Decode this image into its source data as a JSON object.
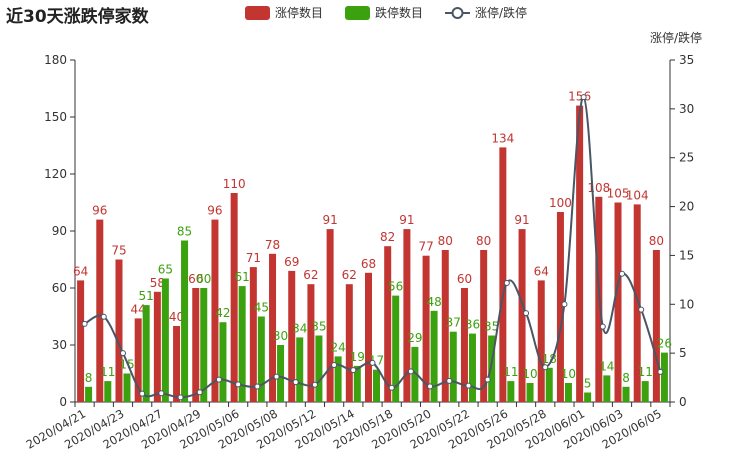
{
  "chart_data": {
    "type": "bar",
    "title": "近30天涨跌停家数",
    "categories": [
      "2020/04/21",
      "2020/04/22",
      "2020/04/23",
      "2020/04/24",
      "2020/04/27",
      "2020/04/28",
      "2020/04/29",
      "2020/04/30",
      "2020/05/06",
      "2020/05/07",
      "2020/05/08",
      "2020/05/11",
      "2020/05/12",
      "2020/05/13",
      "2020/05/14",
      "2020/05/15",
      "2020/05/18",
      "2020/05/19",
      "2020/05/20",
      "2020/05/21",
      "2020/05/22",
      "2020/05/25",
      "2020/05/26",
      "2020/05/27",
      "2020/05/28",
      "2020/05/29",
      "2020/06/01",
      "2020/06/02",
      "2020/06/03",
      "2020/06/04",
      "2020/06/05"
    ],
    "tick_labels": [
      "2020/04/21",
      "2020/04/23",
      "2020/04/27",
      "2020/04/29",
      "2020/05/06",
      "2020/05/08",
      "2020/05/12",
      "2020/05/14",
      "2020/05/18",
      "2020/05/20",
      "2020/05/22",
      "2020/05/26",
      "2020/05/28",
      "2020/06/01",
      "2020/06/03",
      "2020/06/05"
    ],
    "series": [
      {
        "name": "涨停数目",
        "type": "bar",
        "color": "#c23531",
        "values": [
          64,
          96,
          75,
          44,
          58,
          40,
          60,
          96,
          110,
          71,
          78,
          69,
          62,
          91,
          62,
          68,
          82,
          91,
          77,
          80,
          60,
          80,
          134,
          91,
          64,
          100,
          156,
          108,
          105,
          104,
          80
        ]
      },
      {
        "name": "跌停数目",
        "type": "bar",
        "color": "#3ca10f",
        "values": [
          8,
          11,
          15,
          51,
          65,
          85,
          60,
          42,
          61,
          45,
          30,
          34,
          35,
          24,
          19,
          17,
          56,
          29,
          48,
          37,
          36,
          35,
          11,
          10,
          18,
          10,
          5,
          14,
          8,
          11,
          26
        ]
      },
      {
        "name": "涨停/跌停",
        "type": "line",
        "color": "#4a5566",
        "axis": "right",
        "values": [
          8.0,
          8.73,
          5.0,
          0.86,
          0.89,
          0.47,
          1.0,
          2.29,
          1.8,
          1.58,
          2.6,
          2.03,
          1.77,
          3.79,
          3.26,
          4.0,
          1.46,
          3.14,
          1.6,
          2.16,
          1.67,
          2.29,
          12.18,
          9.1,
          3.56,
          10.0,
          31.2,
          7.71,
          13.13,
          9.45,
          3.08
        ]
      }
    ],
    "y_left": {
      "min": 0,
      "max": 180,
      "ticks": [
        0,
        30,
        60,
        90,
        120,
        150,
        180
      ]
    },
    "y_right": {
      "min": 0,
      "max": 35,
      "ticks": [
        0,
        5,
        10,
        15,
        20,
        25,
        30,
        35
      ],
      "label": "涨停/跌停"
    },
    "legend": {
      "position": "top-center",
      "items": [
        "涨停数目",
        "跌停数目",
        "涨停/跌停"
      ]
    },
    "grid": false
  }
}
